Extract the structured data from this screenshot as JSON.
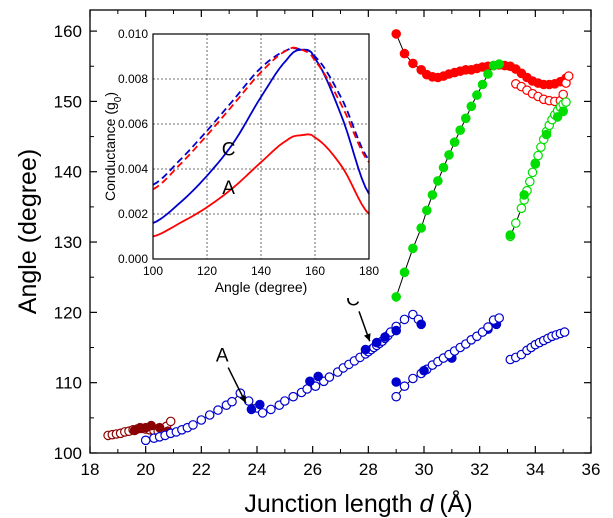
{
  "chart_data": [
    {
      "type": "scatter",
      "xlabel": "Junction length d (Å)",
      "xlabel_parts": {
        "text": "Junction length ",
        "var": "d",
        "unit": "(Å)"
      },
      "ylabel": "Angle (degree)",
      "xlim": [
        18,
        36
      ],
      "ylim": [
        100,
        163
      ],
      "x_ticks": [
        "18",
        "20",
        "22",
        "24",
        "26",
        "28",
        "30",
        "32",
        "34",
        "36"
      ],
      "y_ticks": [
        "100",
        "110",
        "120",
        "130",
        "140",
        "150",
        "160"
      ],
      "grid": false,
      "legend": "none",
      "annotations": [
        {
          "text": "A",
          "x": 23.4,
          "y": 108.5
        },
        {
          "text": "C",
          "x": 28.2,
          "y": 116.5
        }
      ],
      "series": [
        {
          "color": "#8b0000",
          "marker": "open",
          "connected": false,
          "x": [
            18.65,
            18.8,
            18.95,
            19.1,
            19.25,
            19.4,
            19.55,
            19.7,
            19.85,
            20.0,
            20.15,
            20.3,
            20.45,
            20.6,
            20.75,
            20.9
          ],
          "y": [
            102.5,
            102.6,
            102.7,
            102.8,
            103.0,
            103.1,
            103.3,
            103.4,
            103.5,
            103.4,
            103.3,
            103.2,
            103.1,
            103.3,
            103.8,
            104.5
          ]
        },
        {
          "color": "#8b0000",
          "marker": "filled",
          "connected": false,
          "x": [
            19.6,
            19.8,
            20.0,
            20.2,
            20.5,
            20.8
          ],
          "y": [
            103.2,
            103.6,
            103.6,
            103.9,
            103.6,
            103.1
          ]
        },
        {
          "color": "#0000cc",
          "marker": "open",
          "connected": true,
          "x": [
            20.0,
            20.3,
            20.5,
            20.7,
            20.9,
            21.1,
            21.3,
            21.5,
            21.7,
            22.0,
            22.3,
            22.6,
            22.9,
            23.1,
            23.4,
            23.7,
            24.0,
            24.2,
            24.5,
            24.8,
            25.0,
            25.3,
            25.6,
            25.8,
            26.1,
            26.4,
            26.6,
            26.9,
            27.1,
            27.3,
            27.5,
            27.7,
            27.9,
            28.0,
            28.1,
            28.2,
            28.3,
            28.4,
            28.5,
            28.6,
            28.7,
            28.8,
            29.0,
            29.3,
            29.6,
            29.8
          ],
          "y": [
            101.8,
            102.1,
            102.3,
            102.5,
            102.8,
            103.0,
            103.3,
            103.6,
            104.0,
            104.7,
            105.4,
            106.1,
            106.8,
            107.3,
            108.5,
            107.4,
            106.4,
            105.7,
            106.2,
            106.8,
            107.4,
            108.0,
            108.6,
            109.1,
            109.5,
            110.2,
            110.8,
            111.5,
            112.1,
            112.6,
            113.1,
            113.6,
            114.1,
            114.4,
            114.7,
            115.0,
            115.3,
            115.6,
            115.9,
            116.3,
            116.7,
            117.2,
            118.0,
            119.0,
            119.7,
            119.0
          ]
        },
        {
          "color": "#0000cc",
          "marker": "filled",
          "connected": false,
          "x": [
            23.8,
            24.1,
            25.9,
            26.2,
            27.9,
            28.3,
            28.6,
            29.0,
            29.9,
            31.0,
            32.3,
            32.6
          ],
          "y": [
            106.2,
            106.9,
            110.2,
            110.9,
            114.7,
            115.7,
            116.5,
            117.4,
            118.3,
            113.5,
            117.6,
            118.3
          ]
        },
        {
          "color": "#0000cc",
          "marker": "open",
          "connected": true,
          "x": [
            29.0,
            29.3,
            29.6,
            29.9,
            30.1,
            30.3,
            30.5,
            30.7,
            30.9,
            31.1,
            31.3,
            31.5,
            31.7,
            31.9,
            32.1,
            32.3,
            32.5,
            32.7
          ],
          "y": [
            108.0,
            109.5,
            110.6,
            111.3,
            111.9,
            112.5,
            113.0,
            113.5,
            114.0,
            114.5,
            115.0,
            115.5,
            116.1,
            116.6,
            117.2,
            117.9,
            118.9,
            119.2
          ]
        },
        {
          "color": "#0000cc",
          "marker": "filled",
          "connected": false,
          "x": [
            29.0,
            30.0
          ],
          "y": [
            110.1,
            111.7
          ]
        },
        {
          "color": "#0000cc",
          "marker": "open",
          "connected": true,
          "x": [
            33.1,
            33.3,
            33.5,
            33.7,
            33.85,
            34.0,
            34.15,
            34.3,
            34.45,
            34.6,
            34.75,
            34.9,
            35.05
          ],
          "y": [
            113.3,
            113.6,
            114.0,
            114.6,
            115.0,
            115.4,
            115.7,
            116.0,
            116.3,
            116.6,
            116.8,
            117.0,
            117.2
          ]
        },
        {
          "color": "#ff0000",
          "marker": "filled",
          "connected": true,
          "x": [
            29.0,
            29.3,
            29.6,
            29.9,
            30.1,
            30.3,
            30.5,
            30.7,
            30.9,
            31.1,
            31.3,
            31.5,
            31.7,
            31.9,
            32.1,
            32.3,
            32.5,
            32.7,
            32.9,
            33.1,
            33.3,
            33.5,
            33.7,
            33.9,
            34.1,
            34.3,
            34.5,
            34.7,
            34.9,
            35.1
          ],
          "y": [
            159.6,
            156.8,
            155.4,
            154.5,
            153.8,
            153.5,
            153.4,
            153.6,
            153.9,
            154.1,
            154.3,
            154.5,
            154.5,
            154.7,
            154.9,
            155.0,
            155.1,
            155.2,
            155.1,
            155.0,
            154.6,
            154.0,
            153.4,
            152.9,
            152.6,
            152.4,
            152.4,
            152.5,
            152.8,
            153.3
          ]
        },
        {
          "color": "#ff0000",
          "marker": "open",
          "connected": false,
          "x": [
            33.3,
            33.5,
            33.7,
            33.9,
            34.1,
            34.3,
            34.5,
            34.7,
            34.9,
            35.0,
            35.1,
            35.2
          ],
          "y": [
            152.5,
            152.1,
            151.6,
            151.1,
            150.7,
            150.3,
            150.1,
            150.0,
            150.1,
            151.0,
            152.6,
            153.6
          ]
        },
        {
          "color": "#00dd00",
          "marker": "filled",
          "connected": true,
          "x": [
            29.0,
            29.3,
            29.6,
            29.9,
            30.1,
            30.3,
            30.5,
            30.7,
            30.9,
            31.1,
            31.3,
            31.5,
            31.7,
            31.9,
            32.1,
            32.3,
            32.5,
            32.7
          ],
          "y": [
            122.2,
            125.7,
            129.1,
            132.0,
            134.5,
            136.7,
            138.7,
            140.6,
            142.4,
            144.2,
            145.9,
            147.6,
            149.3,
            150.9,
            152.4,
            153.9,
            155.1,
            155.3
          ]
        },
        {
          "color": "#00dd00",
          "marker": "open",
          "connected": true,
          "x": [
            33.1,
            33.3,
            33.5,
            33.6,
            33.7,
            33.8,
            33.9,
            34.0,
            34.1,
            34.2,
            34.3,
            34.4,
            34.5,
            34.6,
            34.7,
            34.8,
            34.9,
            35.0,
            35.1
          ],
          "y": [
            130.8,
            132.7,
            134.8,
            136.0,
            137.3,
            138.6,
            139.9,
            141.1,
            142.3,
            143.5,
            144.6,
            145.7,
            146.6,
            147.4,
            148.1,
            148.7,
            149.2,
            149.6,
            149.9
          ]
        },
        {
          "color": "#00dd00",
          "marker": "filled",
          "connected": false,
          "x": [
            33.1,
            33.6,
            34.0,
            34.4,
            34.8,
            35.0
          ],
          "y": [
            131.0,
            136.7,
            141.2,
            145.3,
            147.8,
            148.6
          ]
        }
      ]
    },
    {
      "type": "line",
      "inset": true,
      "xlabel": "Angle (degree)",
      "ylabel": "Conductance (g₀)",
      "ylabel_parts": {
        "text": "Conductance (g",
        "sub": "0",
        "close": ")"
      },
      "xlim": [
        100,
        180
      ],
      "ylim": [
        0,
        0.01
      ],
      "x_ticks": [
        "100",
        "120",
        "140",
        "160",
        "180"
      ],
      "y_ticks": [
        "0.000",
        "0.002",
        "0.004",
        "0.006",
        "0.008",
        "0.010"
      ],
      "grid": true,
      "legend": "none",
      "annotations": [
        {
          "text": "C",
          "x": 128,
          "y": 0.0046
        },
        {
          "text": "A",
          "x": 128,
          "y": 0.0029
        }
      ],
      "series": [
        {
          "color": "#0000cc",
          "style": "solid",
          "x": [
            100,
            110,
            120,
            130,
            140,
            150,
            155,
            160,
            170,
            180
          ],
          "y": [
            0.0016,
            0.0025,
            0.0037,
            0.0052,
            0.0072,
            0.0089,
            0.0093,
            0.0089,
            0.0063,
            0.0029
          ]
        },
        {
          "color": "#ff0000",
          "style": "solid",
          "x": [
            100,
            110,
            120,
            130,
            140,
            150,
            155,
            160,
            170,
            180
          ],
          "y": [
            0.001,
            0.0016,
            0.0023,
            0.0032,
            0.0043,
            0.0053,
            0.0055,
            0.0054,
            0.0041,
            0.002
          ]
        },
        {
          "color": "#0000cc",
          "style": "dashed",
          "x": [
            100,
            110,
            120,
            130,
            140,
            150,
            155,
            160,
            170,
            180
          ],
          "y": [
            0.0033,
            0.0044,
            0.0057,
            0.0071,
            0.0085,
            0.0093,
            0.0093,
            0.009,
            0.0071,
            0.0044
          ]
        },
        {
          "color": "#ff0000",
          "style": "dashed",
          "x": [
            100,
            110,
            120,
            130,
            140,
            150,
            155,
            160,
            170,
            180
          ],
          "y": [
            0.0031,
            0.0042,
            0.0055,
            0.0069,
            0.0083,
            0.0093,
            0.0093,
            0.0088,
            0.0068,
            0.0043
          ]
        }
      ]
    }
  ]
}
